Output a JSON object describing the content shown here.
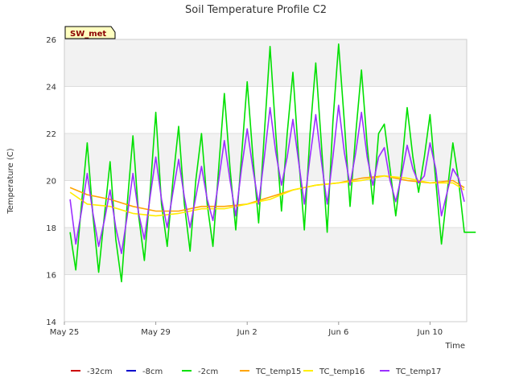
{
  "chart_data": {
    "type": "line",
    "title": "Soil Temperature Profile C2",
    "badge": "SW_met",
    "xlabel": "Time",
    "ylabel": "Temperature (C)",
    "ylim": [
      14,
      26
    ],
    "xlim": [
      0,
      16
    ],
    "x_unit": "days since May 25",
    "y_ticks": [
      14,
      16,
      18,
      20,
      22,
      24,
      26
    ],
    "x_ticks": [
      {
        "value": 0,
        "label": "May 25"
      },
      {
        "value": 4,
        "label": "May 29"
      },
      {
        "value": 8,
        "label": "Jun 2"
      },
      {
        "value": 12,
        "label": "Jun 6"
      },
      {
        "value": 16,
        "label": "Jun 10"
      }
    ],
    "grid": "horizontal alternating bands",
    "legend_position": "bottom",
    "series": [
      {
        "name": "-32cm",
        "color": "#cc0000",
        "x": [],
        "y": []
      },
      {
        "name": "-8cm",
        "color": "#0000cc",
        "x": [],
        "y": []
      },
      {
        "name": "-2cm",
        "color": "#00e000",
        "x": [
          0.25,
          0.5,
          0.75,
          1.0,
          1.25,
          1.5,
          1.75,
          2.0,
          2.25,
          2.5,
          2.75,
          3.0,
          3.25,
          3.5,
          3.75,
          4.0,
          4.25,
          4.5,
          4.75,
          5.0,
          5.25,
          5.5,
          5.75,
          6.0,
          6.25,
          6.5,
          6.75,
          7.0,
          7.25,
          7.5,
          7.75,
          8.0,
          8.25,
          8.5,
          8.75,
          9.0,
          9.25,
          9.5,
          9.75,
          10.0,
          10.25,
          10.5,
          10.75,
          11.0,
          11.25,
          11.5,
          11.75,
          12.0,
          12.25,
          12.5,
          12.75,
          13.0,
          13.25,
          13.5,
          13.75,
          14.0,
          14.25,
          14.5,
          14.75,
          15.0,
          15.25,
          15.5,
          15.75,
          16.0,
          16.25,
          16.5,
          16.75,
          17.0,
          17.25,
          17.5,
          17.75,
          18.0
        ],
        "y": [
          17.8,
          16.2,
          19.0,
          21.6,
          18.5,
          16.1,
          18.5,
          20.8,
          17.5,
          15.7,
          19.0,
          21.9,
          18.5,
          16.6,
          19.5,
          22.9,
          19.0,
          17.2,
          20.0,
          22.3,
          19.0,
          17.0,
          20.0,
          22.0,
          19.0,
          17.2,
          20.5,
          23.7,
          20.5,
          17.9,
          21.0,
          24.2,
          21.0,
          18.2,
          22.0,
          25.7,
          22.0,
          18.7,
          22.0,
          24.6,
          21.0,
          17.9,
          22.0,
          25.0,
          21.5,
          17.8,
          22.5,
          25.8,
          22.5,
          18.9,
          22.0,
          24.7,
          21.5,
          19.0,
          22.0,
          22.4,
          20.5,
          18.5,
          20.5,
          23.1,
          21.0,
          19.5,
          21.0,
          22.8,
          20.0,
          17.3,
          19.5,
          21.6,
          20.0,
          17.8,
          17.8,
          17.8
        ]
      },
      {
        "name": "TC_temp15",
        "color": "#ffa500",
        "x": [
          0.25,
          1.0,
          2.0,
          3.0,
          4.0,
          5.0,
          6.0,
          7.0,
          8.0,
          9.0,
          10.0,
          11.0,
          12.0,
          13.0,
          14.0,
          15.0,
          16.0,
          17.0,
          17.5
        ],
        "y": [
          19.7,
          19.4,
          19.2,
          18.9,
          18.7,
          18.7,
          18.9,
          18.9,
          19.0,
          19.3,
          19.6,
          19.8,
          19.9,
          20.1,
          20.2,
          20.0,
          19.9,
          20.0,
          19.7
        ]
      },
      {
        "name": "TC_temp16",
        "color": "#ffee00",
        "x": [
          0.25,
          1.0,
          2.0,
          3.0,
          4.0,
          5.0,
          6.0,
          7.0,
          8.0,
          9.0,
          10.0,
          11.0,
          12.0,
          13.0,
          14.0,
          15.0,
          16.0,
          17.0,
          17.5
        ],
        "y": [
          19.5,
          19.0,
          18.9,
          18.6,
          18.5,
          18.6,
          18.8,
          18.8,
          19.0,
          19.2,
          19.6,
          19.8,
          19.9,
          20.0,
          20.2,
          20.1,
          19.9,
          19.9,
          19.6
        ]
      },
      {
        "name": "TC_temp17",
        "color": "#9b30ff",
        "x": [
          0.25,
          0.5,
          0.75,
          1.0,
          1.25,
          1.5,
          1.75,
          2.0,
          2.25,
          2.5,
          2.75,
          3.0,
          3.25,
          3.5,
          3.75,
          4.0,
          4.25,
          4.5,
          4.75,
          5.0,
          5.25,
          5.5,
          5.75,
          6.0,
          6.25,
          6.5,
          6.75,
          7.0,
          7.25,
          7.5,
          7.75,
          8.0,
          8.25,
          8.5,
          8.75,
          9.0,
          9.25,
          9.5,
          9.75,
          10.0,
          10.25,
          10.5,
          10.75,
          11.0,
          11.25,
          11.5,
          11.75,
          12.0,
          12.25,
          12.5,
          12.75,
          13.0,
          13.25,
          13.5,
          13.75,
          14.0,
          14.25,
          14.5,
          14.75,
          15.0,
          15.25,
          15.5,
          15.75,
          16.0,
          16.25,
          16.5,
          16.75,
          17.0,
          17.25,
          17.5
        ],
        "y": [
          19.2,
          17.3,
          18.7,
          20.3,
          18.6,
          17.2,
          18.3,
          19.6,
          18.0,
          16.9,
          18.5,
          20.3,
          18.6,
          17.5,
          19.3,
          21.0,
          19.2,
          18.0,
          19.5,
          20.9,
          19.3,
          18.0,
          19.3,
          20.6,
          19.2,
          18.3,
          20.0,
          21.7,
          20.0,
          18.5,
          20.5,
          22.2,
          20.5,
          19.0,
          21.0,
          23.1,
          21.2,
          19.8,
          21.0,
          22.6,
          20.8,
          19.0,
          21.0,
          22.8,
          20.8,
          19.0,
          21.0,
          23.2,
          21.2,
          19.8,
          21.2,
          22.9,
          21.0,
          19.8,
          21.0,
          21.4,
          20.0,
          19.1,
          20.2,
          21.5,
          20.5,
          19.9,
          20.2,
          21.6,
          20.5,
          18.5,
          19.5,
          20.5,
          20.1,
          19.1
        ]
      }
    ]
  }
}
